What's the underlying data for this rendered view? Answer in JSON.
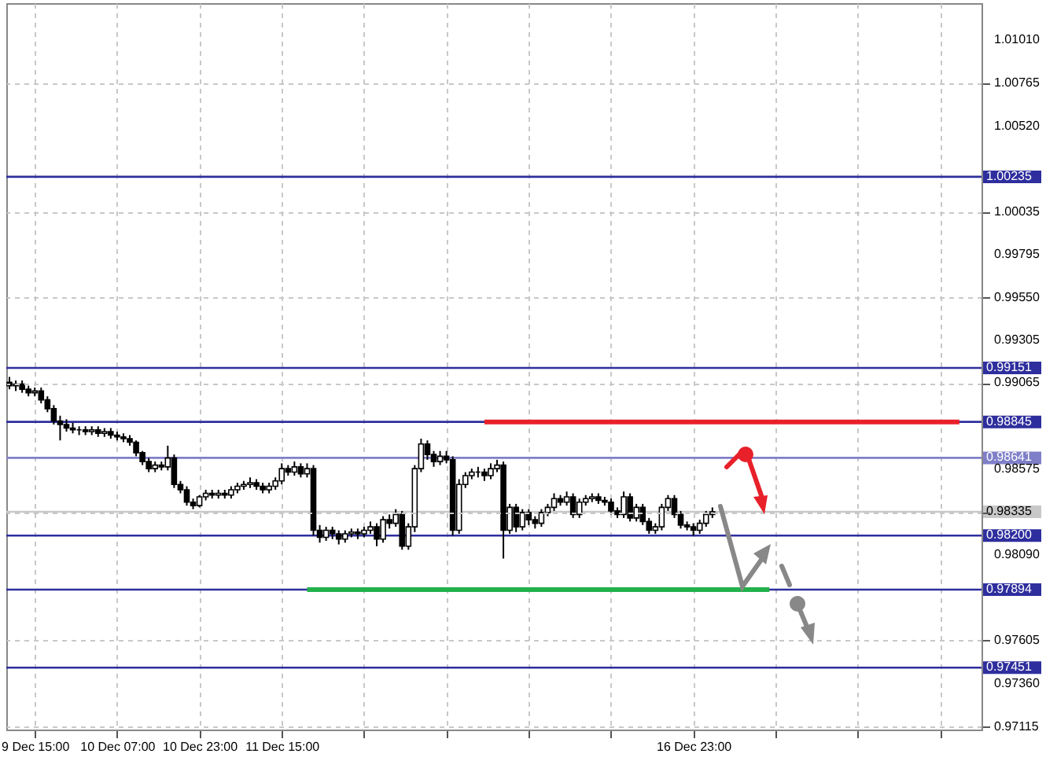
{
  "chart_data": {
    "type": "candlestick",
    "categories": [
      null,
      null,
      null,
      null,
      "9 Dec 15:00",
      null,
      null,
      null,
      null,
      null,
      null,
      null,
      null,
      null,
      null,
      null,
      null,
      "10 Dec 07:00",
      null,
      null,
      null,
      null,
      null,
      null,
      null,
      null,
      null,
      null,
      null,
      null,
      "10 Dec 23:00",
      null,
      null,
      null,
      null,
      null,
      null,
      null,
      null,
      null,
      null,
      null,
      null,
      "11 Dec 15:00",
      null,
      null,
      null,
      null,
      null,
      null,
      null,
      null,
      null,
      null,
      null,
      null,
      null,
      null,
      null,
      null,
      null,
      null,
      null,
      null,
      null,
      null,
      null,
      null,
      null,
      null,
      null,
      null,
      null,
      null,
      null,
      null,
      null,
      null,
      null,
      null,
      null,
      null,
      null,
      null,
      null,
      null,
      null,
      null,
      null,
      null,
      null,
      null,
      null,
      null,
      null,
      null,
      null,
      null,
      null,
      null,
      null,
      null,
      null,
      null,
      null,
      null,
      null,
      null,
      "16 Dec 23:00",
      null,
      null,
      null,
      null,
      null,
      null,
      null,
      null,
      null,
      null,
      null,
      null,
      null,
      null,
      null,
      null,
      null,
      null,
      null,
      null,
      null,
      null,
      null,
      null,
      null,
      null,
      null,
      null,
      null,
      null,
      null,
      null,
      null,
      null,
      null,
      null,
      null,
      null,
      null,
      null,
      null,
      null,
      null,
      null,
      null
    ],
    "ohlc": [
      [
        0.9907,
        0.991,
        0.9903,
        0.9905
      ],
      [
        0.9905,
        0.9908,
        0.9902,
        0.9906
      ],
      [
        0.9906,
        0.9908,
        0.9901,
        0.9903
      ],
      [
        0.9903,
        0.9905,
        0.9899,
        0.9901
      ],
      [
        0.9901,
        0.9904,
        0.9899,
        0.9902
      ],
      [
        0.9902,
        0.9904,
        0.9895,
        0.9897
      ],
      [
        0.9897,
        0.9899,
        0.989,
        0.9892
      ],
      [
        0.9892,
        0.9894,
        0.9883,
        0.9885
      ],
      [
        0.9885,
        0.9888,
        0.9874,
        0.9883
      ],
      [
        0.9883,
        0.9886,
        0.9879,
        0.9881
      ],
      [
        0.9881,
        0.9884,
        0.9878,
        0.988
      ],
      [
        0.988,
        0.9882,
        0.9877,
        0.988
      ],
      [
        0.988,
        0.9882,
        0.9877,
        0.9879
      ],
      [
        0.9879,
        0.9882,
        0.9877,
        0.988
      ],
      [
        0.988,
        0.9882,
        0.9876,
        0.9878
      ],
      [
        0.9878,
        0.9881,
        0.9876,
        0.9879
      ],
      [
        0.9879,
        0.9881,
        0.9875,
        0.9877
      ],
      [
        0.9877,
        0.9879,
        0.9874,
        0.9876
      ],
      [
        0.9876,
        0.9878,
        0.9873,
        0.9875
      ],
      [
        0.9875,
        0.9877,
        0.9871,
        0.9873
      ],
      [
        0.9873,
        0.9874,
        0.9865,
        0.9867
      ],
      [
        0.9867,
        0.9868,
        0.986,
        0.9862
      ],
      [
        0.9862,
        0.9864,
        0.9856,
        0.9858
      ],
      [
        0.9858,
        0.9862,
        0.9856,
        0.986
      ],
      [
        0.986,
        0.9862,
        0.9857,
        0.9859
      ],
      [
        0.9859,
        0.9871,
        0.9857,
        0.9864
      ],
      [
        0.9864,
        0.9866,
        0.9847,
        0.9849
      ],
      [
        0.9849,
        0.9851,
        0.9844,
        0.9846
      ],
      [
        0.9846,
        0.9848,
        0.9837,
        0.9839
      ],
      [
        0.9839,
        0.9841,
        0.9835,
        0.9837
      ],
      [
        0.9837,
        0.9843,
        0.9836,
        0.9842
      ],
      [
        0.9842,
        0.9846,
        0.984,
        0.9844
      ],
      [
        0.9844,
        0.9846,
        0.9841,
        0.9843
      ],
      [
        0.9843,
        0.9846,
        0.9841,
        0.9844
      ],
      [
        0.9844,
        0.9846,
        0.9841,
        0.9843
      ],
      [
        0.9843,
        0.9848,
        0.9841,
        0.9846
      ],
      [
        0.9846,
        0.985,
        0.9844,
        0.9848
      ],
      [
        0.9848,
        0.9851,
        0.9846,
        0.9849
      ],
      [
        0.9849,
        0.9853,
        0.9847,
        0.985
      ],
      [
        0.985,
        0.9852,
        0.9846,
        0.9848
      ],
      [
        0.9848,
        0.985,
        0.9844,
        0.9846
      ],
      [
        0.9846,
        0.985,
        0.9844,
        0.9848
      ],
      [
        0.9848,
        0.9853,
        0.9846,
        0.9851
      ],
      [
        0.9851,
        0.9861,
        0.9849,
        0.9858
      ],
      [
        0.9858,
        0.986,
        0.9854,
        0.9856
      ],
      [
        0.9856,
        0.9862,
        0.9854,
        0.9859
      ],
      [
        0.9859,
        0.9861,
        0.9853,
        0.9855
      ],
      [
        0.9855,
        0.9861,
        0.9853,
        0.9858
      ],
      [
        0.9858,
        0.986,
        0.982,
        0.9823
      ],
      [
        0.9823,
        0.9826,
        0.9816,
        0.9819
      ],
      [
        0.9819,
        0.9825,
        0.9817,
        0.9823
      ],
      [
        0.9823,
        0.9825,
        0.9818,
        0.9821
      ],
      [
        0.9821,
        0.9823,
        0.9815,
        0.9818
      ],
      [
        0.9818,
        0.9823,
        0.9816,
        0.9821
      ],
      [
        0.9821,
        0.9824,
        0.9819,
        0.9822
      ],
      [
        0.9822,
        0.9824,
        0.9818,
        0.9821
      ],
      [
        0.9821,
        0.9825,
        0.9819,
        0.9823
      ],
      [
        0.9823,
        0.9828,
        0.9821,
        0.9825
      ],
      [
        0.9825,
        0.9827,
        0.9814,
        0.9818
      ],
      [
        0.9818,
        0.9831,
        0.9816,
        0.9829
      ],
      [
        0.9829,
        0.9832,
        0.9824,
        0.9827
      ],
      [
        0.9827,
        0.9835,
        0.9825,
        0.9832
      ],
      [
        0.9832,
        0.9834,
        0.9812,
        0.9814
      ],
      [
        0.9814,
        0.9827,
        0.9812,
        0.9825
      ],
      [
        0.9825,
        0.986,
        0.9822,
        0.9858
      ],
      [
        0.9858,
        0.9875,
        0.9856,
        0.9872
      ],
      [
        0.9872,
        0.9874,
        0.9863,
        0.9866
      ],
      [
        0.9866,
        0.9868,
        0.9859,
        0.9862
      ],
      [
        0.9862,
        0.9868,
        0.986,
        0.9865
      ],
      [
        0.9865,
        0.9868,
        0.9861,
        0.9863
      ],
      [
        0.9863,
        0.9865,
        0.982,
        0.9823
      ],
      [
        0.9823,
        0.9852,
        0.9821,
        0.9849
      ],
      [
        0.9849,
        0.9856,
        0.9847,
        0.9854
      ],
      [
        0.9854,
        0.9858,
        0.9852,
        0.9856
      ],
      [
        0.9856,
        0.9859,
        0.9853,
        0.9856
      ],
      [
        0.9856,
        0.9858,
        0.9851,
        0.9854
      ],
      [
        0.9854,
        0.9861,
        0.9852,
        0.9858
      ],
      [
        0.9858,
        0.9863,
        0.9856,
        0.986
      ],
      [
        0.986,
        0.9862,
        0.9807,
        0.9823
      ],
      [
        0.9823,
        0.9838,
        0.9821,
        0.9836
      ],
      [
        0.9836,
        0.9838,
        0.9822,
        0.9825
      ],
      [
        0.9825,
        0.9835,
        0.9823,
        0.9833
      ],
      [
        0.9833,
        0.9835,
        0.9826,
        0.9829
      ],
      [
        0.9829,
        0.9831,
        0.9824,
        0.9827
      ],
      [
        0.9827,
        0.9835,
        0.9825,
        0.9833
      ],
      [
        0.9833,
        0.9838,
        0.9831,
        0.9836
      ],
      [
        0.9836,
        0.9844,
        0.9834,
        0.9841
      ],
      [
        0.9841,
        0.9843,
        0.9837,
        0.9839
      ],
      [
        0.9839,
        0.9845,
        0.9837,
        0.9842
      ],
      [
        0.9842,
        0.9844,
        0.983,
        0.9832
      ],
      [
        0.9832,
        0.9841,
        0.983,
        0.9839
      ],
      [
        0.9839,
        0.9843,
        0.9837,
        0.9841
      ],
      [
        0.9841,
        0.9844,
        0.9839,
        0.9842
      ],
      [
        0.9842,
        0.9844,
        0.9838,
        0.984
      ],
      [
        0.984,
        0.9842,
        0.9837,
        0.9839
      ],
      [
        0.9839,
        0.9841,
        0.9832,
        0.9834
      ],
      [
        0.9834,
        0.9836,
        0.983,
        0.9832
      ],
      [
        0.9832,
        0.9845,
        0.983,
        0.9842
      ],
      [
        0.9842,
        0.9844,
        0.9828,
        0.983
      ],
      [
        0.983,
        0.9838,
        0.9828,
        0.9836
      ],
      [
        0.9836,
        0.9838,
        0.9826,
        0.9828
      ],
      [
        0.9828,
        0.983,
        0.9821,
        0.9823
      ],
      [
        0.9823,
        0.9827,
        0.9821,
        0.9825
      ],
      [
        0.9825,
        0.9838,
        0.9823,
        0.9836
      ],
      [
        0.9836,
        0.9843,
        0.9834,
        0.9841
      ],
      [
        0.9841,
        0.9843,
        0.983,
        0.9832
      ],
      [
        0.9832,
        0.9834,
        0.9824,
        0.9826
      ],
      [
        0.9826,
        0.9828,
        0.9823,
        0.9825
      ],
      [
        0.9825,
        0.9827,
        0.982,
        0.9823
      ],
      [
        0.9823,
        0.9829,
        0.9821,
        0.9827
      ],
      [
        0.9827,
        0.9834,
        0.9825,
        0.9832
      ],
      [
        0.9832,
        0.9836,
        0.983,
        0.98335
      ],
      null,
      null,
      null,
      null,
      null,
      null,
      null,
      null,
      null,
      null,
      null,
      null,
      null,
      null,
      null,
      null,
      null,
      null,
      null,
      null,
      null,
      null,
      null,
      null,
      null,
      null,
      null,
      null,
      null,
      null,
      null,
      null,
      null,
      null,
      null,
      null,
      null,
      null,
      null,
      null,
      null,
      null
    ],
    "series": [
      {
        "type": "line",
        "color": "#e8202a",
        "values": [
          null,
          null,
          null,
          null,
          null,
          null,
          null,
          null,
          null,
          null,
          null,
          null,
          null,
          null,
          null,
          null,
          null,
          null,
          null,
          null,
          null,
          null,
          null,
          null,
          null,
          null,
          null,
          null,
          null,
          null,
          null,
          null,
          null,
          null,
          null,
          null,
          null,
          null,
          null,
          null,
          null,
          null,
          null,
          null,
          null,
          null,
          null,
          null,
          null,
          null,
          null,
          null,
          null,
          null,
          null,
          null,
          null,
          null,
          null,
          null,
          null,
          null,
          null,
          null,
          null,
          null,
          null,
          null,
          null,
          null,
          null,
          null,
          null,
          null,
          null,
          0.98845,
          0.98845,
          0.98845,
          0.98845,
          0.98845,
          0.98845,
          0.98845,
          0.98845,
          0.98845,
          0.98845,
          0.98845,
          0.98845,
          0.98845,
          0.98845,
          0.98845,
          0.98845,
          0.98845,
          0.98845,
          0.98845,
          0.98845,
          0.98845,
          0.98845,
          0.98845,
          0.98845,
          0.98845,
          0.98845,
          0.98845,
          0.98845,
          0.98845,
          0.98845,
          0.98845,
          0.98845,
          0.98845,
          0.98845,
          0.98845,
          0.98845,
          0.98845,
          0.98845,
          0.98845,
          0.98845,
          0.98845,
          0.98845,
          0.98845,
          0.98845,
          0.98845,
          0.98845,
          0.98845,
          0.98845,
          0.98845,
          0.98845,
          0.98845,
          0.98845,
          0.98845,
          0.98845,
          0.98845,
          0.98845,
          0.98845,
          0.98845,
          0.98845,
          0.98845,
          0.98845,
          0.98845,
          0.98845,
          0.98845,
          0.98845,
          0.98845,
          0.98845,
          0.98845,
          0.98845,
          0.98845,
          0.98845,
          0.98845,
          0.98845,
          0.98845,
          0.98845,
          0.98845,
          null,
          null,
          null
        ]
      },
      {
        "type": "line",
        "color": "#22b14c",
        "values": [
          null,
          null,
          null,
          null,
          null,
          null,
          null,
          null,
          null,
          null,
          null,
          null,
          null,
          null,
          null,
          null,
          null,
          null,
          null,
          null,
          null,
          null,
          null,
          null,
          null,
          null,
          null,
          null,
          null,
          null,
          null,
          null,
          null,
          null,
          null,
          null,
          null,
          null,
          null,
          null,
          null,
          null,
          null,
          null,
          null,
          null,
          null,
          0.97894,
          0.97894,
          0.97894,
          0.97894,
          0.97894,
          0.97894,
          0.97894,
          0.97894,
          0.97894,
          0.97894,
          0.97894,
          0.97894,
          0.97894,
          0.97894,
          0.97894,
          0.97894,
          0.97894,
          0.97894,
          0.97894,
          0.97894,
          0.97894,
          0.97894,
          0.97894,
          0.97894,
          0.97894,
          0.97894,
          0.97894,
          0.97894,
          0.97894,
          0.97894,
          0.97894,
          0.97894,
          0.97894,
          0.97894,
          0.97894,
          0.97894,
          0.97894,
          0.97894,
          0.97894,
          0.97894,
          0.97894,
          0.97894,
          0.97894,
          0.97894,
          0.97894,
          0.97894,
          0.97894,
          0.97894,
          0.97894,
          0.97894,
          0.97894,
          0.97894,
          0.97894,
          0.97894,
          0.97894,
          0.97894,
          0.97894,
          0.97894,
          0.97894,
          0.97894,
          0.97894,
          0.97894,
          0.97894,
          0.97894,
          0.97894,
          0.97894,
          0.97894,
          0.97894,
          0.97894,
          0.97894,
          0.97894,
          0.97894,
          0.97894,
          0.97894,
          null,
          null,
          null,
          null,
          null,
          null,
          null,
          null,
          null,
          null,
          null,
          null,
          null,
          null,
          null,
          null,
          null,
          null,
          null,
          null,
          null,
          null,
          null,
          null,
          null,
          null,
          null,
          null,
          null,
          null,
          null,
          null,
          null
        ]
      }
    ],
    "ylim": [
      0.971,
      1.0122
    ],
    "yticks": [
      {
        "value": 1.0101,
        "label": "1.01010"
      },
      {
        "value": 1.00765,
        "label": "1.00765"
      },
      {
        "value": 1.0052,
        "label": "1.00520"
      },
      {
        "value": 1.00035,
        "label": "1.00035"
      },
      {
        "value": 0.99795,
        "label": "0.99795"
      },
      {
        "value": 0.9955,
        "label": "0.99550"
      },
      {
        "value": 0.99305,
        "label": "0.99305"
      },
      {
        "value": 0.99065,
        "label": "0.99065"
      },
      {
        "value": 0.98575,
        "label": "0.98575"
      },
      {
        "value": 0.9833,
        "label": null
      },
      {
        "value": 0.9809,
        "label": "0.98090"
      },
      {
        "value": 0.97605,
        "label": "0.97605"
      },
      {
        "value": 0.9736,
        "label": "0.97360"
      },
      {
        "value": 0.97115,
        "label": "0.97115"
      }
    ],
    "grid": true,
    "ref_lines": [
      {
        "axis": "y",
        "value": 1.00235,
        "label": "1.00235",
        "color": "#2e2e9e"
      },
      {
        "axis": "y",
        "value": 0.99151,
        "label": "0.99151",
        "color": "#2e2e9e"
      },
      {
        "axis": "y",
        "value": 0.98845,
        "label": "0.98845",
        "color": "#2e2e9e"
      },
      {
        "axis": "y",
        "value": 0.98641,
        "label": "0.98641",
        "color": "#7f7fc8"
      },
      {
        "axis": "y",
        "value": 0.98335,
        "label": "0.98335",
        "color": "#c8c8c8"
      },
      {
        "axis": "y",
        "value": 0.982,
        "label": "0.98200",
        "color": "#2e2e9e"
      },
      {
        "axis": "y",
        "value": 0.97894,
        "label": "0.97894",
        "color": "#2e2e9e"
      },
      {
        "axis": "y",
        "value": 0.97451,
        "label": "0.97451",
        "color": "#2e2e9e"
      }
    ]
  }
}
